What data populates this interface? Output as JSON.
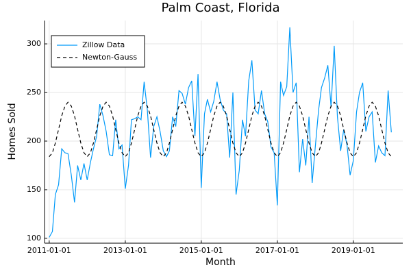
{
  "chart_data": {
    "type": "line",
    "title": "Palm Coast, Florida",
    "x_label": "Month",
    "y_label": "Homes Sold",
    "x": [
      "2011-01-01",
      "2011-02-01",
      "2011-03-01",
      "2011-04-01",
      "2011-05-01",
      "2011-06-01",
      "2011-07-01",
      "2011-08-01",
      "2011-09-01",
      "2011-10-01",
      "2011-11-01",
      "2011-12-01",
      "2012-01-01",
      "2012-02-01",
      "2012-03-01",
      "2012-04-01",
      "2012-05-01",
      "2012-06-01",
      "2012-07-01",
      "2012-08-01",
      "2012-09-01",
      "2012-10-01",
      "2012-11-01",
      "2012-12-01",
      "2013-01-01",
      "2013-02-01",
      "2013-03-01",
      "2013-04-01",
      "2013-05-01",
      "2013-06-01",
      "2013-07-01",
      "2013-08-01",
      "2013-09-01",
      "2013-10-01",
      "2013-11-01",
      "2013-12-01",
      "2014-01-01",
      "2014-02-01",
      "2014-03-01",
      "2014-04-01",
      "2014-05-01",
      "2014-06-01",
      "2014-07-01",
      "2014-08-01",
      "2014-09-01",
      "2014-10-01",
      "2014-11-01",
      "2014-12-01",
      "2015-01-01",
      "2015-02-01",
      "2015-03-01",
      "2015-04-01",
      "2015-05-01",
      "2015-06-01",
      "2015-07-01",
      "2015-08-01",
      "2015-09-01",
      "2015-10-01",
      "2015-11-01",
      "2015-12-01",
      "2016-01-01",
      "2016-02-01",
      "2016-03-01",
      "2016-04-01",
      "2016-05-01",
      "2016-06-01",
      "2016-07-01",
      "2016-08-01",
      "2016-09-01",
      "2016-10-01",
      "2016-11-01",
      "2016-12-01",
      "2017-01-01",
      "2017-02-01",
      "2017-03-01",
      "2017-04-01",
      "2017-05-01",
      "2017-06-01",
      "2017-07-01",
      "2017-08-01",
      "2017-09-01",
      "2017-10-01",
      "2017-11-01",
      "2017-12-01",
      "2018-01-01",
      "2018-02-01",
      "2018-03-01",
      "2018-04-01",
      "2018-05-01",
      "2018-06-01",
      "2018-07-01",
      "2018-08-01",
      "2018-09-01",
      "2018-10-01",
      "2018-11-01",
      "2018-12-01",
      "2019-01-01",
      "2019-02-01",
      "2019-03-01",
      "2019-04-01",
      "2019-05-01",
      "2019-06-01",
      "2019-07-01",
      "2019-08-01",
      "2019-09-01",
      "2019-10-01",
      "2019-11-01",
      "2019-12-01",
      "2020-01-01"
    ],
    "series": [
      {
        "name": "Zillow Data",
        "color": "#009af9",
        "dash": false,
        "values": [
          101,
          107,
          145,
          155,
          192,
          188,
          187,
          165,
          137,
          175,
          160,
          177,
          160,
          178,
          192,
          205,
          238,
          226,
          210,
          186,
          185,
          222,
          192,
          196,
          151,
          175,
          222,
          223,
          225,
          222,
          261,
          232,
          183,
          215,
          225,
          210,
          190,
          184,
          190,
          225,
          215,
          252,
          249,
          238,
          255,
          262,
          205,
          269,
          152,
          228,
          243,
          230,
          241,
          261,
          243,
          232,
          228,
          183,
          250,
          145,
          170,
          222,
          205,
          262,
          283,
          232,
          228,
          252,
          228,
          220,
          194,
          188,
          134,
          261,
          247,
          256,
          317,
          250,
          260,
          168,
          202,
          175,
          225,
          157,
          195,
          232,
          255,
          265,
          278,
          235,
          298,
          225,
          190,
          212,
          196,
          165,
          180,
          230,
          250,
          260,
          210,
          225,
          230,
          178,
          195,
          188,
          185,
          252,
          209
        ]
      },
      {
        "name": "Newton-Gauss",
        "color": "#000000",
        "dash": true,
        "values": [
          184,
          188,
          198,
          212,
          226,
          236,
          240,
          236,
          226,
          212,
          198,
          188,
          184,
          188,
          198,
          212,
          226,
          236,
          240,
          236,
          226,
          212,
          198,
          188,
          184,
          188,
          198,
          212,
          226,
          236,
          240,
          236,
          226,
          212,
          198,
          188,
          184,
          188,
          198,
          212,
          226,
          236,
          240,
          236,
          226,
          212,
          198,
          188,
          184,
          188,
          198,
          212,
          226,
          236,
          240,
          236,
          226,
          212,
          198,
          188,
          184,
          188,
          198,
          212,
          226,
          236,
          240,
          236,
          226,
          212,
          198,
          188,
          184,
          188,
          198,
          212,
          226,
          236,
          240,
          236,
          226,
          212,
          198,
          188,
          184,
          188,
          198,
          212,
          226,
          236,
          240,
          236,
          226,
          212,
          198,
          188,
          184,
          188,
          198,
          212,
          226,
          236,
          240,
          236,
          226,
          212,
          198,
          188,
          184
        ]
      }
    ],
    "xlim": [
      "2010-11-17",
      "2020-04-20"
    ],
    "xticks": [
      "2011-01-01",
      "2013-01-01",
      "2015-01-01",
      "2017-01-01",
      "2019-01-01"
    ],
    "ylim": [
      95,
      324
    ],
    "yticks": [
      100,
      150,
      200,
      250,
      300
    ],
    "grid": true,
    "legend": "top-left"
  }
}
